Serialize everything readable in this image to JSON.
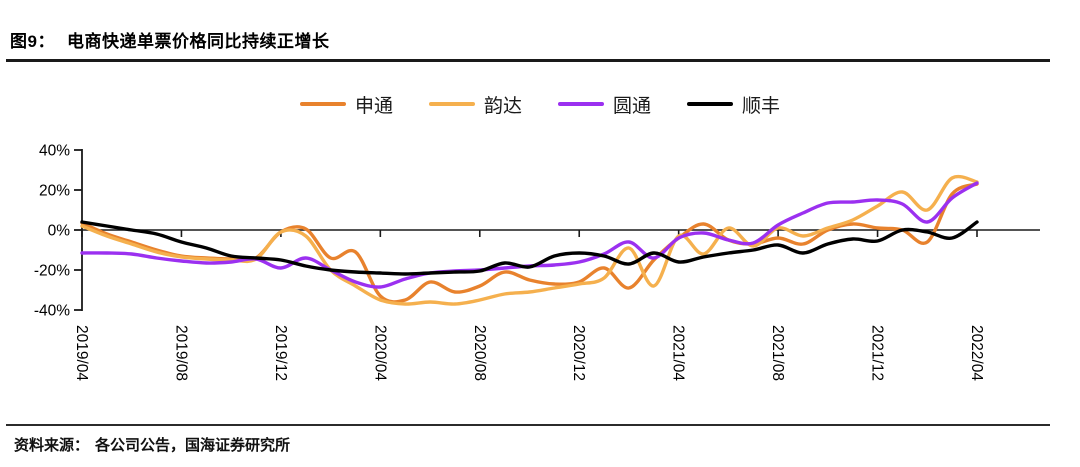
{
  "page": {
    "title_prefix": "图9：",
    "title": "电商快递单票价格同比持续正增长",
    "source_label": "资料来源：",
    "source_text": "各公司公告，国海证券研究所"
  },
  "chart_data": {
    "type": "line",
    "title": "电商快递单票价格同比持续正增长",
    "xlabel": "",
    "ylabel": "",
    "unit": "%",
    "ylim": [
      -40,
      40
    ],
    "grid": false,
    "legend_position": "top-center",
    "axis_color": "#1a1a1a",
    "y_ticks": [
      40,
      20,
      0,
      -20,
      -40
    ],
    "y_tick_suffix": "%",
    "x_tick_labels": [
      "2019/04",
      "2019/08",
      "2019/12",
      "2020/04",
      "2020/08",
      "2020/12",
      "2021/04",
      "2021/08",
      "2021/12",
      "2022/04"
    ],
    "categories": [
      "2019/04",
      "2019/05",
      "2019/06",
      "2019/07",
      "2019/08",
      "2019/09",
      "2019/10",
      "2019/11",
      "2019/12",
      "2020/01",
      "2020/02",
      "2020/03",
      "2020/04",
      "2020/05",
      "2020/06",
      "2020/07",
      "2020/08",
      "2020/09",
      "2020/10",
      "2020/11",
      "2020/12",
      "2021/01",
      "2021/02",
      "2021/03",
      "2021/04",
      "2021/05",
      "2021/06",
      "2021/07",
      "2021/08",
      "2021/09",
      "2021/10",
      "2021/11",
      "2021/12",
      "2022/01",
      "2022/02",
      "2022/03",
      "2022/04"
    ],
    "series": [
      {
        "name": "申通",
        "key": "shentong",
        "color": "#E8822D",
        "values": [
          3.5,
          -2,
          -6,
          -10,
          -13,
          -14,
          -14.5,
          -14,
          -1,
          0.5,
          -14,
          -11,
          -33,
          -35,
          -26,
          -31,
          -28,
          -21,
          -25,
          -27,
          -26,
          -19,
          -29,
          -15,
          -4,
          3,
          -5,
          -7,
          -4,
          -7,
          0,
          3,
          1,
          0,
          -6,
          18,
          23
        ]
      },
      {
        "name": "韵达",
        "key": "yunda",
        "color": "#F5B04E",
        "values": [
          2,
          -3,
          -7,
          -11,
          -13.5,
          -14.5,
          -15,
          -14.5,
          -1,
          -3,
          -20,
          -28,
          -35,
          -37,
          -36,
          -37,
          -35,
          -32,
          -31,
          -29,
          -27,
          -24,
          -9,
          -28,
          -3,
          -12,
          1,
          -8,
          1,
          -3,
          1,
          5,
          12,
          19,
          10,
          26,
          24
        ]
      },
      {
        "name": "圆通",
        "key": "yuantong",
        "color": "#9B30F0",
        "values": [
          -11.5,
          -11.5,
          -12,
          -14,
          -15.5,
          -16.5,
          -16,
          -14.5,
          -19,
          -14,
          -20,
          -26,
          -28.5,
          -24.5,
          -21.5,
          -20.5,
          -20,
          -19,
          -18,
          -17.5,
          -16,
          -12,
          -6,
          -14,
          -4,
          -1.5,
          -5,
          -6.5,
          2.5,
          8.5,
          13.5,
          14,
          15,
          13,
          4,
          16,
          23.5
        ]
      },
      {
        "name": "顺丰",
        "key": "shunfeng",
        "color": "#000000",
        "values": [
          4,
          2,
          0,
          -2,
          -6,
          -9,
          -13,
          -14,
          -15,
          -18,
          -20,
          -21,
          -21.5,
          -22,
          -21.5,
          -21,
          -20.5,
          -16.5,
          -18.5,
          -13,
          -11.5,
          -13,
          -17,
          -11.5,
          -16,
          -13.5,
          -11.5,
          -10,
          -7.5,
          -11.5,
          -7,
          -4.5,
          -5.5,
          0,
          -1,
          -4,
          4
        ]
      }
    ]
  }
}
